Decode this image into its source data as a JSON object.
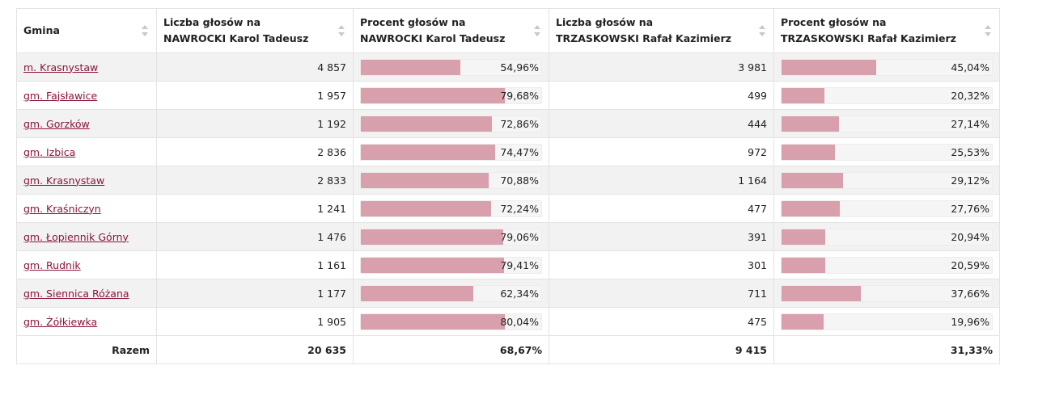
{
  "headers": [
    "Gmina",
    "Liczba głosów na NAWROCKI Karol Tadeusz",
    "Procent głosów na NAWROCKI Karol Tadeusz",
    "Liczba głosów na TRZASKOWSKI Rafał Kazimierz",
    "Procent głosów na TRZASKOWSKI Rafał Kazimierz"
  ],
  "header_lines": [
    [
      "Gmina"
    ],
    [
      "Liczba głosów na",
      "NAWROCKI Karol Tadeusz"
    ],
    [
      "Procent głosów na",
      "NAWROCKI Karol Tadeusz"
    ],
    [
      "Liczba głosów na",
      "TRZASKOWSKI Rafał Kazimierz"
    ],
    [
      "Procent głosów na",
      "TRZASKOWSKI Rafał Kazimierz"
    ]
  ],
  "rows": [
    {
      "gmina": "m. Krasnystaw",
      "n_votes": "4 857",
      "n_pct": "54,96%",
      "n_frac": 0.5496,
      "t_votes": "3 981",
      "t_pct": "45,04%",
      "t_frac": 0.4504
    },
    {
      "gmina": "gm. Fajsławice",
      "n_votes": "1 957",
      "n_pct": "79,68%",
      "n_frac": 0.7968,
      "t_votes": "499",
      "t_pct": "20,32%",
      "t_frac": 0.2032
    },
    {
      "gmina": "gm. Gorzków",
      "n_votes": "1 192",
      "n_pct": "72,86%",
      "n_frac": 0.7286,
      "t_votes": "444",
      "t_pct": "27,14%",
      "t_frac": 0.2714
    },
    {
      "gmina": "gm. Izbica",
      "n_votes": "2 836",
      "n_pct": "74,47%",
      "n_frac": 0.7447,
      "t_votes": "972",
      "t_pct": "25,53%",
      "t_frac": 0.2553
    },
    {
      "gmina": "gm. Krasnystaw",
      "n_votes": "2 833",
      "n_pct": "70,88%",
      "n_frac": 0.7088,
      "t_votes": "1 164",
      "t_pct": "29,12%",
      "t_frac": 0.2912
    },
    {
      "gmina": "gm. Kraśniczyn",
      "n_votes": "1 241",
      "n_pct": "72,24%",
      "n_frac": 0.7224,
      "t_votes": "477",
      "t_pct": "27,76%",
      "t_frac": 0.2776
    },
    {
      "gmina": "gm. Łopiennik Górny",
      "n_votes": "1 476",
      "n_pct": "79,06%",
      "n_frac": 0.7906,
      "t_votes": "391",
      "t_pct": "20,94%",
      "t_frac": 0.2094
    },
    {
      "gmina": "gm. Rudnik",
      "n_votes": "1 161",
      "n_pct": "79,41%",
      "n_frac": 0.7941,
      "t_votes": "301",
      "t_pct": "20,59%",
      "t_frac": 0.2059
    },
    {
      "gmina": "gm. Siennica Różana",
      "n_votes": "1 177",
      "n_pct": "62,34%",
      "n_frac": 0.6234,
      "t_votes": "711",
      "t_pct": "37,66%",
      "t_frac": 0.3766
    },
    {
      "gmina": "gm. Żółkiewka",
      "n_votes": "1 905",
      "n_pct": "80,04%",
      "n_frac": 0.8004,
      "t_votes": "475",
      "t_pct": "19,96%",
      "t_frac": 0.1996
    }
  ],
  "total": {
    "label": "Razem",
    "n_votes": "20 635",
    "n_pct": "68,67%",
    "t_votes": "9 415",
    "t_pct": "31,33%"
  },
  "colors": {
    "bar_fill": "#d89fad",
    "link": "#8b1538",
    "row_stripe": "#f2f2f2"
  }
}
